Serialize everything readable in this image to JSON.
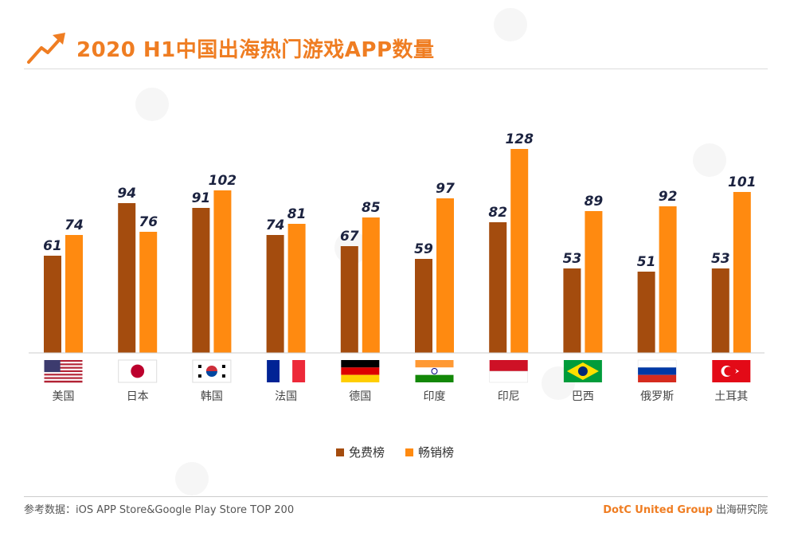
{
  "title": "2020 H1中国出海热门游戏APP数量",
  "colors": {
    "free": "#a44c0e",
    "grossing": "#ff8a10",
    "accent": "#ef7d22"
  },
  "chart_data": {
    "type": "bar",
    "title": "2020 H1中国出海热门游戏APP数量",
    "categories": [
      "美国",
      "日本",
      "韩国",
      "法国",
      "德国",
      "印度",
      "印尼",
      "巴西",
      "俄罗斯",
      "土耳其"
    ],
    "series": [
      {
        "name": "免费榜",
        "values": [
          61,
          94,
          91,
          74,
          67,
          59,
          82,
          53,
          51,
          53
        ]
      },
      {
        "name": "畅销榜",
        "values": [
          74,
          76,
          102,
          81,
          85,
          97,
          128,
          89,
          92,
          101
        ]
      }
    ],
    "flags": [
      "flag-usa-icon",
      "flag-japan-icon",
      "flag-korea-icon",
      "flag-france-icon",
      "flag-germany-icon",
      "flag-india-icon",
      "flag-indonesia-icon",
      "flag-brazil-icon",
      "flag-russia-icon",
      "flag-turkey-icon"
    ],
    "ylim": [
      0,
      130
    ],
    "legend_position": "bottom-center",
    "grid": false
  },
  "legend": {
    "free": "免费榜",
    "grossing": "畅销榜"
  },
  "footer": {
    "source": "参考数据：iOS APP Store&Google Play Store TOP 200",
    "brand_name": "DotC United Group",
    "brand_suffix": "出海研究院"
  }
}
